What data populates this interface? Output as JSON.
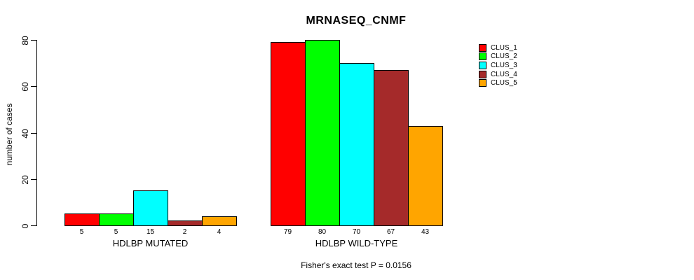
{
  "title": "MRNASEQ_CNMF",
  "ylabel": "number of cases",
  "caption": "Fisher's exact test P = 0.0156",
  "legend": {
    "entries": [
      {
        "label": "CLUS_1",
        "color": "#FF0000"
      },
      {
        "label": "CLUS_2",
        "color": "#00FF00"
      },
      {
        "label": "CLUS_3",
        "color": "#00FFFF"
      },
      {
        "label": "CLUS_4",
        "color": "#A52A2A"
      },
      {
        "label": "CLUS_5",
        "color": "#FFA500"
      }
    ]
  },
  "chart_data": {
    "type": "bar",
    "title": "MRNASEQ_CNMF",
    "xlabel": "",
    "ylabel": "number of cases",
    "ylim": [
      0,
      80
    ],
    "y_ticks": [
      0,
      20,
      40,
      60,
      80
    ],
    "grid": false,
    "legend_position": "right",
    "bar_border_color": "#000000",
    "categories": [
      "HDLBP MUTATED",
      "HDLBP WILD-TYPE"
    ],
    "series": [
      {
        "name": "CLUS_1",
        "color": "#FF0000",
        "values": [
          5,
          79
        ]
      },
      {
        "name": "CLUS_2",
        "color": "#00FF00",
        "values": [
          5,
          80
        ]
      },
      {
        "name": "CLUS_3",
        "color": "#00FFFF",
        "values": [
          15,
          70
        ]
      },
      {
        "name": "CLUS_4",
        "color": "#A52A2A",
        "values": [
          2,
          67
        ]
      },
      {
        "name": "CLUS_5",
        "color": "#FFA500",
        "values": [
          4,
          43
        ]
      }
    ],
    "groups": [
      {
        "label": "HDLBP MUTATED",
        "values": [
          5,
          5,
          15,
          2,
          4
        ]
      },
      {
        "label": "HDLBP WILD-TYPE",
        "values": [
          79,
          80,
          70,
          67,
          43
        ]
      }
    ],
    "annotation": "Fisher's exact test P = 0.0156"
  }
}
